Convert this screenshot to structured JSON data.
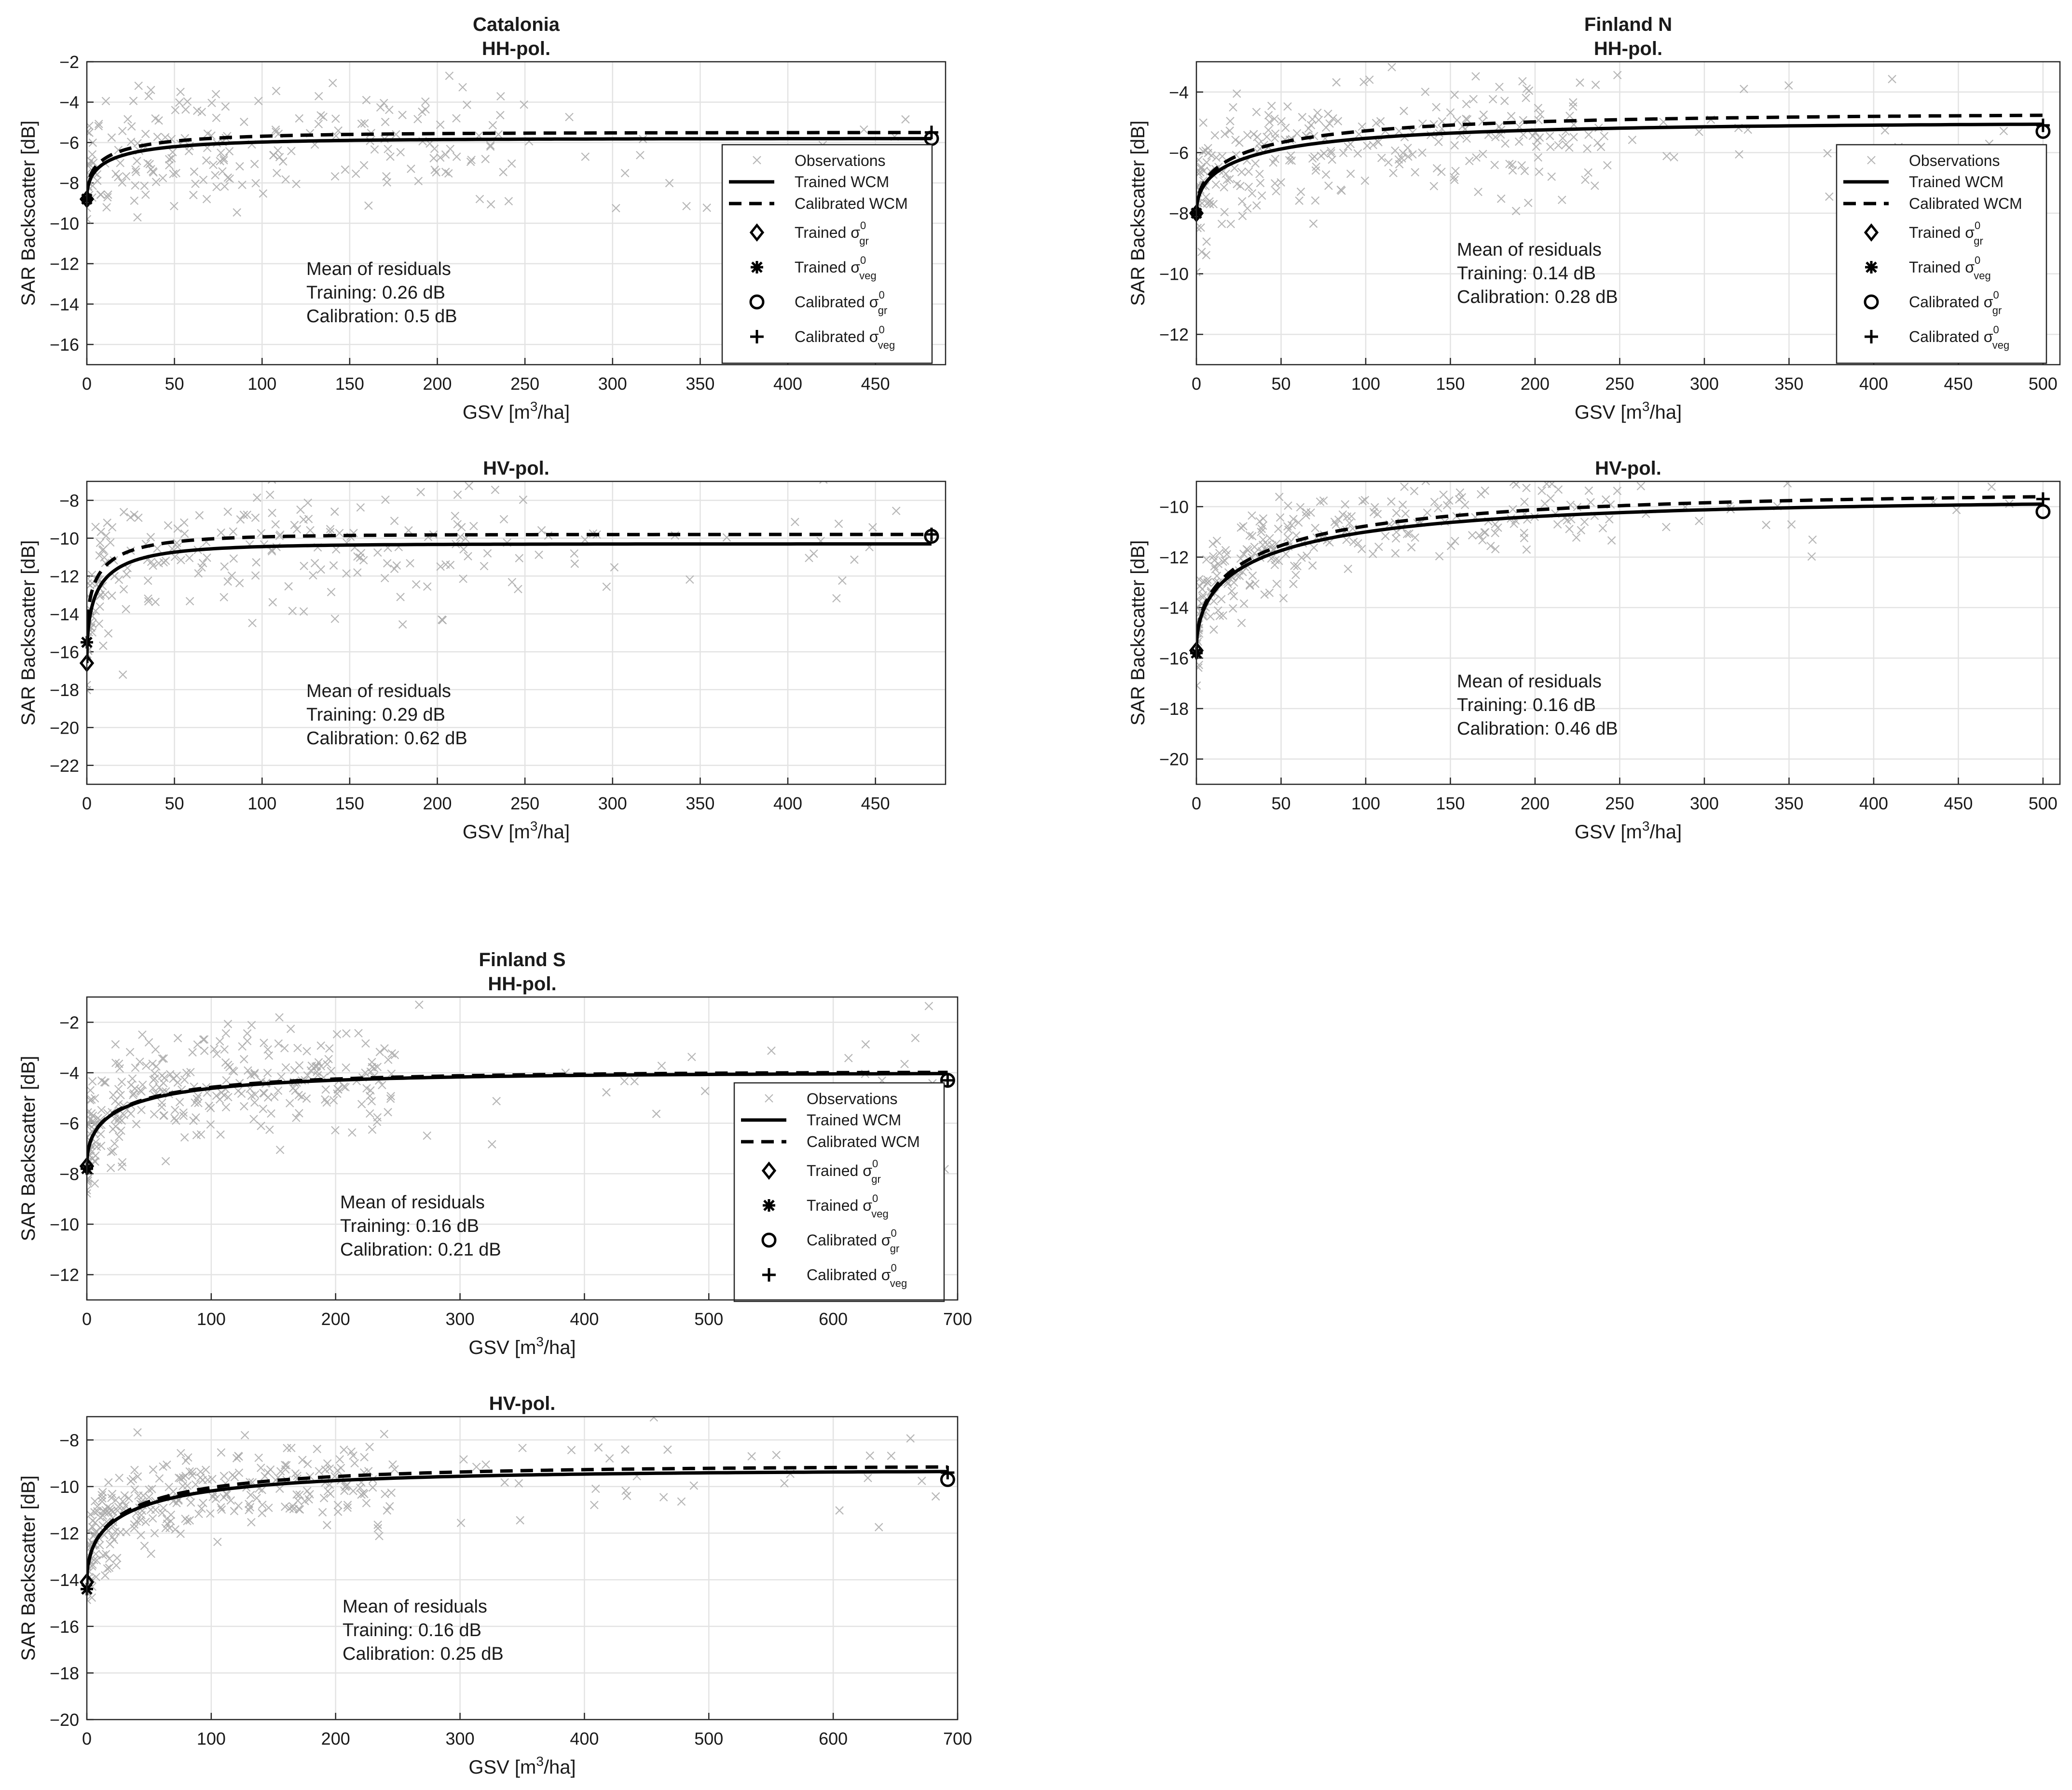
{
  "chart_data": [
    {
      "id": "catalonia-hh",
      "type": "scatter",
      "title_top": "Catalonia",
      "title": "HH-pol.",
      "xlabel_main": "GSV  [m",
      "xlabel_sup": "3",
      "xlabel_end": "/ha]",
      "ylabel": "SAR Backscatter  [dB]",
      "xlim": [
        0,
        490
      ],
      "ylim": [
        -17,
        -2
      ],
      "xticks": [
        0,
        50,
        100,
        150,
        200,
        250,
        300,
        350,
        400,
        450
      ],
      "yticks": [
        -16,
        -14,
        -12,
        -10,
        -8,
        -6,
        -4,
        -2
      ],
      "grid": true,
      "legend": "top-right",
      "series": [
        {
          "name": "Observations",
          "kind": "scatter",
          "marker": "x",
          "color": "#a9a9a9",
          "gen": {
            "seed": 11,
            "n": 230,
            "xmax": 470,
            "tail": 0.06,
            "sigma": 1.5,
            "curve": [
              -8.8,
              -5.9,
              45
            ]
          }
        },
        {
          "name": "Trained WCM",
          "kind": "line",
          "style": "solid",
          "curve": [
            -8.8,
            -5.8,
            32
          ],
          "xmax": 482
        },
        {
          "name": "Calibrated WCM",
          "kind": "line",
          "style": "dashed",
          "curve": [
            -8.7,
            -5.5,
            32
          ],
          "xmax": 482
        }
      ],
      "points": {
        "trained_gr": [
          0,
          -8.8
        ],
        "trained_veg": [
          0,
          -8.8
        ],
        "calibrated_gr": [
          482,
          -5.8
        ],
        "calibrated_veg": [
          482,
          -5.5
        ]
      },
      "residuals": {
        "heading": "Mean of residuals",
        "training": "Training: 0.26 dB",
        "calibration": "Calibration: 0.5 dB"
      },
      "legend_entries": {
        "obs": "Observations",
        "trained": "Trained WCM",
        "calibrated": "Calibrated WCM",
        "trained_prefix": "Trained σ",
        "calibrated_prefix": "Calibrated σ",
        "sup0": "0",
        "sub_gr": "gr",
        "sub_veg": "veg"
      }
    },
    {
      "id": "catalonia-hv",
      "type": "scatter",
      "title": "HV-pol.",
      "xlabel_main": "GSV  [m",
      "xlabel_sup": "3",
      "xlabel_end": "/ha]",
      "ylabel": "SAR Backscatter  [dB]",
      "xlim": [
        0,
        490
      ],
      "ylim": [
        -23,
        -7
      ],
      "xticks": [
        0,
        50,
        100,
        150,
        200,
        250,
        300,
        350,
        400,
        450
      ],
      "yticks": [
        -22,
        -20,
        -18,
        -16,
        -14,
        -12,
        -10,
        -8
      ],
      "grid": true,
      "series": [
        {
          "name": "Observations",
          "kind": "scatter",
          "marker": "x",
          "color": "#a9a9a9",
          "gen": {
            "seed": 23,
            "n": 230,
            "xmax": 470,
            "tail": 0.06,
            "sigma": 1.6,
            "curve": [
              -15.8,
              -10.2,
              22
            ]
          }
        },
        {
          "name": "Trained WCM",
          "kind": "line",
          "style": "solid",
          "curve": [
            -16.6,
            -10.3,
            18
          ],
          "xmax": 482
        },
        {
          "name": "Calibrated WCM",
          "kind": "line",
          "style": "dashed",
          "curve": [
            -15.5,
            -9.8,
            18
          ],
          "xmax": 482
        }
      ],
      "points": {
        "trained_gr": [
          0,
          -16.6
        ],
        "trained_veg": [
          0,
          -15.5
        ],
        "calibrated_gr": [
          482,
          -9.9
        ],
        "calibrated_veg": [
          482,
          -9.8
        ]
      },
      "residuals": {
        "heading": "Mean of residuals",
        "training": "Training: 0.29 dB",
        "calibration": "Calibration: 0.62 dB"
      }
    },
    {
      "id": "finland-n-hh",
      "type": "scatter",
      "title_top": "Finland N",
      "title": "HH-pol.",
      "xlabel_main": "GSV  [m",
      "xlabel_sup": "3",
      "xlabel_end": "/ha]",
      "ylabel": "SAR Backscatter  [dB]",
      "xlim": [
        0,
        510
      ],
      "ylim": [
        -13,
        -3
      ],
      "xticks": [
        0,
        50,
        100,
        150,
        200,
        250,
        300,
        350,
        400,
        450,
        500
      ],
      "yticks": [
        -12,
        -10,
        -8,
        -6,
        -4
      ],
      "grid": true,
      "legend": "top-right",
      "series": [
        {
          "name": "Observations",
          "kind": "scatter",
          "marker": "x",
          "color": "#a9a9a9",
          "gen": {
            "seed": 37,
            "n": 300,
            "xmax": 500,
            "tail": 0.05,
            "sigma": 1.0,
            "curve": [
              -8.0,
              -5.3,
              70
            ]
          }
        },
        {
          "name": "Trained WCM",
          "kind": "line",
          "style": "solid",
          "curve": [
            -8.0,
            -5.0,
            85
          ],
          "xmax": 500
        },
        {
          "name": "Calibrated WCM",
          "kind": "line",
          "style": "dashed",
          "curve": [
            -8.0,
            -4.7,
            85
          ],
          "xmax": 500
        }
      ],
      "points": {
        "trained_gr": [
          0,
          -8.0
        ],
        "trained_veg": [
          0,
          -8.0
        ],
        "calibrated_gr": [
          500,
          -5.3
        ],
        "calibrated_veg": [
          500,
          -5.1
        ]
      },
      "residuals": {
        "heading": "Mean of residuals",
        "training": "Training: 0.14 dB",
        "calibration": "Calibration: 0.28 dB"
      },
      "legend_entries": {
        "obs": "Observations",
        "trained": "Trained WCM",
        "calibrated": "Calibrated WCM",
        "trained_prefix": "Trained σ",
        "calibrated_prefix": "Calibrated σ",
        "sup0": "0",
        "sub_gr": "gr",
        "sub_veg": "veg"
      }
    },
    {
      "id": "finland-n-hv",
      "type": "scatter",
      "title": "HV-pol.",
      "xlabel_main": "GSV  [m",
      "xlabel_sup": "3",
      "xlabel_end": "/ha]",
      "ylabel": "SAR Backscatter  [dB]",
      "xlim": [
        0,
        510
      ],
      "ylim": [
        -21,
        -9
      ],
      "xticks": [
        0,
        50,
        100,
        150,
        200,
        250,
        300,
        350,
        400,
        450,
        500
      ],
      "yticks": [
        -20,
        -18,
        -16,
        -14,
        -12,
        -10
      ],
      "grid": true,
      "series": [
        {
          "name": "Observations",
          "kind": "scatter",
          "marker": "x",
          "color": "#a9a9a9",
          "gen": {
            "seed": 53,
            "n": 300,
            "xmax": 500,
            "tail": 0.05,
            "sigma": 1.0,
            "curve": [
              -15.7,
              -9.7,
              85
            ]
          }
        },
        {
          "name": "Trained WCM",
          "kind": "line",
          "style": "solid",
          "curve": [
            -15.7,
            -9.7,
            110
          ],
          "xmax": 500
        },
        {
          "name": "Calibrated WCM",
          "kind": "line",
          "style": "dashed",
          "curve": [
            -15.7,
            -9.4,
            110
          ],
          "xmax": 500
        }
      ],
      "points": {
        "trained_gr": [
          0,
          -15.7
        ],
        "trained_veg": [
          0,
          -15.8
        ],
        "calibrated_gr": [
          500,
          -10.2
        ],
        "calibrated_veg": [
          500,
          -9.7
        ]
      },
      "residuals": {
        "heading": "Mean of residuals",
        "training": "Training: 0.16 dB",
        "calibration": "Calibration: 0.46 dB"
      }
    },
    {
      "id": "finland-s-hh",
      "type": "scatter",
      "title_top": "Finland S",
      "title": "HH-pol.",
      "xlabel_main": "GSV  [m",
      "xlabel_sup": "3",
      "xlabel_end": "/ha]",
      "ylabel": "SAR Backscatter  [dB]",
      "xlim": [
        0,
        700
      ],
      "ylim": [
        -13,
        -1
      ],
      "xticks": [
        0,
        100,
        200,
        300,
        400,
        500,
        600,
        700
      ],
      "yticks": [
        -12,
        -10,
        -8,
        -6,
        -4,
        -2
      ],
      "grid": true,
      "legend": "right",
      "series": [
        {
          "name": "Observations",
          "kind": "scatter",
          "marker": "x",
          "color": "#a9a9a9",
          "gen": {
            "seed": 71,
            "n": 330,
            "xmax": 690,
            "tail": 0.0,
            "sigma": 1.1,
            "curve": [
              -7.7,
              -3.9,
              75
            ]
          }
        },
        {
          "name": "Trained WCM",
          "kind": "line",
          "style": "solid",
          "curve": [
            -7.7,
            -4.0,
            80
          ],
          "xmax": 692
        },
        {
          "name": "Calibrated WCM",
          "kind": "line",
          "style": "dashed",
          "curve": [
            -7.7,
            -3.95,
            80
          ],
          "xmax": 692
        }
      ],
      "points": {
        "trained_gr": [
          0,
          -7.7
        ],
        "trained_veg": [
          0,
          -7.8
        ],
        "calibrated_gr": [
          692,
          -4.3
        ],
        "calibrated_veg": [
          692,
          -4.3
        ]
      },
      "residuals": {
        "heading": "Mean of residuals",
        "training": "Training: 0.16 dB",
        "calibration": "Calibration: 0.21 dB"
      },
      "legend_entries": {
        "obs": "Observations",
        "trained": "Trained WCM",
        "calibrated": "Calibrated WCM",
        "trained_prefix": "Trained σ",
        "calibrated_prefix": "Calibrated σ",
        "sup0": "0",
        "sub_gr": "gr",
        "sub_veg": "veg"
      }
    },
    {
      "id": "finland-s-hv",
      "type": "scatter",
      "title": "HV-pol.",
      "xlabel_main": "GSV  [m",
      "xlabel_sup": "3",
      "xlabel_end": "/ha]",
      "ylabel": "SAR Backscatter  [dB]",
      "xlim": [
        0,
        700
      ],
      "ylim": [
        -20,
        -7
      ],
      "xticks": [
        0,
        100,
        200,
        300,
        400,
        500,
        600,
        700
      ],
      "yticks": [
        -20,
        -18,
        -16,
        -14,
        -12,
        -10,
        -8
      ],
      "grid": true,
      "series": [
        {
          "name": "Observations",
          "kind": "scatter",
          "marker": "x",
          "color": "#a9a9a9",
          "gen": {
            "seed": 89,
            "n": 330,
            "xmax": 690,
            "tail": 0.0,
            "sigma": 1.0,
            "curve": [
              -14.2,
              -9.2,
              85
            ]
          }
        },
        {
          "name": "Trained WCM",
          "kind": "line",
          "style": "solid",
          "curve": [
            -14.1,
            -9.3,
            90
          ],
          "xmax": 692
        },
        {
          "name": "Calibrated WCM",
          "kind": "line",
          "style": "dashed",
          "curve": [
            -14.2,
            -9.1,
            90
          ],
          "xmax": 692
        }
      ],
      "points": {
        "trained_gr": [
          0,
          -14.1
        ],
        "trained_veg": [
          0,
          -14.4
        ],
        "calibrated_gr": [
          692,
          -9.7
        ],
        "calibrated_veg": [
          692,
          -9.4
        ]
      },
      "residuals": {
        "heading": "Mean of residuals",
        "training": "Training: 0.16 dB",
        "calibration": "Calibration: 0.25 dB"
      }
    }
  ]
}
